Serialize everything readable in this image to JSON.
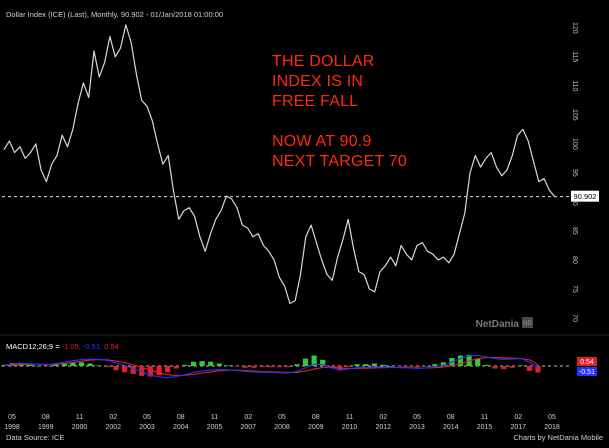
{
  "header": {
    "title": "Dollar Index (ICE) (Last), Monthly, 90.902 - 01/Jan/2018 01:00:00"
  },
  "annotation": {
    "lines": [
      "THE DOLLAR",
      "INDEX IS  IN",
      "FREE FALL",
      "",
      "NOW AT 90.9",
      "NEXT TARGET 70"
    ]
  },
  "watermark": "NetDania",
  "footer": {
    "source": "Data Source: ICE",
    "credit": "Charts by NetDania Mobile"
  },
  "colors": {
    "background": "#000000",
    "price_line": "#d9d9d9",
    "annotation": "#ff2a10",
    "macd_line": "#2233ff",
    "signal_line": "#e2202a",
    "hist_pos": "#33cc33",
    "hist_neg": "#e2202a"
  },
  "chart_data": [
    {
      "type": "line",
      "title": "Dollar Index (ICE) (Last), Monthly, 90.902 - 01/Jan/2018 01:00:00",
      "x_tick_labels": [
        {
          "month": "05",
          "year": "1998"
        },
        {
          "month": "08",
          "year": "1999"
        },
        {
          "month": "11",
          "year": "2000"
        },
        {
          "month": "02",
          "year": "2002"
        },
        {
          "month": "05",
          "year": "2003"
        },
        {
          "month": "08",
          "year": "2004"
        },
        {
          "month": "11",
          "year": "2005"
        },
        {
          "month": "02",
          "year": "2007"
        },
        {
          "month": "05",
          "year": "2008"
        },
        {
          "month": "08",
          "year": "2009"
        },
        {
          "month": "11",
          "year": "2010"
        },
        {
          "month": "02",
          "year": "2012"
        },
        {
          "month": "05",
          "year": "2013"
        },
        {
          "month": "08",
          "year": "2014"
        },
        {
          "month": "11",
          "year": "2015"
        },
        {
          "month": "02",
          "year": "2017"
        },
        {
          "month": "05",
          "year": "2018"
        }
      ],
      "y_ticks": [
        "70",
        "75",
        "80",
        "85",
        "90",
        "95",
        "100",
        "105",
        "110",
        "115",
        "120"
      ],
      "ylim": [
        70,
        121
      ],
      "xlim": [
        1997.4,
        2018.4
      ],
      "last_value": "90.902",
      "grid": false,
      "series": [
        {
          "points": [
            [
              1997.4,
              99.0
            ],
            [
              1997.6,
              100.5
            ],
            [
              1997.8,
              98.5
            ],
            [
              1998.0,
              99.5
            ],
            [
              1998.2,
              97.5
            ],
            [
              1998.4,
              98.5
            ],
            [
              1998.6,
              100.0
            ],
            [
              1998.8,
              95.5
            ],
            [
              1999.0,
              93.5
            ],
            [
              1999.2,
              96.5
            ],
            [
              1999.4,
              98.0
            ],
            [
              1999.6,
              101.5
            ],
            [
              1999.8,
              99.5
            ],
            [
              2000.0,
              102.5
            ],
            [
              2000.2,
              107.0
            ],
            [
              2000.4,
              110.5
            ],
            [
              2000.6,
              108.0
            ],
            [
              2000.8,
              116.0
            ],
            [
              2001.0,
              111.5
            ],
            [
              2001.2,
              114.0
            ],
            [
              2001.4,
              118.5
            ],
            [
              2001.6,
              115.0
            ],
            [
              2001.8,
              116.5
            ],
            [
              2002.0,
              120.5
            ],
            [
              2002.2,
              117.5
            ],
            [
              2002.4,
              112.0
            ],
            [
              2002.6,
              107.5
            ],
            [
              2002.8,
              106.5
            ],
            [
              2003.0,
              104.0
            ],
            [
              2003.2,
              100.0
            ],
            [
              2003.4,
              96.5
            ],
            [
              2003.6,
              98.0
            ],
            [
              2003.8,
              92.0
            ],
            [
              2004.0,
              87.0
            ],
            [
              2004.2,
              88.5
            ],
            [
              2004.4,
              89.0
            ],
            [
              2004.6,
              87.5
            ],
            [
              2004.8,
              84.0
            ],
            [
              2005.0,
              81.5
            ],
            [
              2005.2,
              84.5
            ],
            [
              2005.4,
              87.0
            ],
            [
              2005.6,
              88.5
            ],
            [
              2005.8,
              91.0
            ],
            [
              2006.0,
              90.5
            ],
            [
              2006.2,
              89.0
            ],
            [
              2006.4,
              86.0
            ],
            [
              2006.6,
              85.5
            ],
            [
              2006.8,
              84.0
            ],
            [
              2007.0,
              84.5
            ],
            [
              2007.2,
              82.5
            ],
            [
              2007.4,
              81.5
            ],
            [
              2007.6,
              80.0
            ],
            [
              2007.8,
              77.0
            ],
            [
              2008.0,
              75.5
            ],
            [
              2008.2,
              72.5
            ],
            [
              2008.4,
              73.0
            ],
            [
              2008.6,
              77.5
            ],
            [
              2008.8,
              84.0
            ],
            [
              2009.0,
              86.0
            ],
            [
              2009.2,
              83.0
            ],
            [
              2009.4,
              80.0
            ],
            [
              2009.6,
              77.5
            ],
            [
              2009.8,
              76.5
            ],
            [
              2010.0,
              80.5
            ],
            [
              2010.2,
              83.5
            ],
            [
              2010.4,
              87.0
            ],
            [
              2010.6,
              82.0
            ],
            [
              2010.8,
              78.0
            ],
            [
              2011.0,
              77.5
            ],
            [
              2011.2,
              75.0
            ],
            [
              2011.4,
              74.5
            ],
            [
              2011.6,
              78.0
            ],
            [
              2011.8,
              79.0
            ],
            [
              2012.0,
              80.5
            ],
            [
              2012.2,
              79.0
            ],
            [
              2012.4,
              82.5
            ],
            [
              2012.6,
              81.0
            ],
            [
              2012.8,
              80.0
            ],
            [
              2013.0,
              82.5
            ],
            [
              2013.2,
              83.0
            ],
            [
              2013.4,
              81.5
            ],
            [
              2013.6,
              81.0
            ],
            [
              2013.8,
              80.0
            ],
            [
              2014.0,
              80.5
            ],
            [
              2014.2,
              79.5
            ],
            [
              2014.4,
              81.0
            ],
            [
              2014.6,
              84.5
            ],
            [
              2014.8,
              88.0
            ],
            [
              2015.0,
              95.0
            ],
            [
              2015.2,
              98.0
            ],
            [
              2015.4,
              96.0
            ],
            [
              2015.6,
              97.5
            ],
            [
              2015.8,
              98.5
            ],
            [
              2016.0,
              96.0
            ],
            [
              2016.2,
              94.5
            ],
            [
              2016.4,
              95.5
            ],
            [
              2016.6,
              98.0
            ],
            [
              2016.8,
              101.5
            ],
            [
              2017.0,
              102.5
            ],
            [
              2017.2,
              100.5
            ],
            [
              2017.4,
              97.0
            ],
            [
              2017.6,
              93.5
            ],
            [
              2017.8,
              94.0
            ],
            [
              2018.0,
              92.0
            ],
            [
              2018.2,
              90.9
            ]
          ]
        }
      ]
    },
    {
      "type": "line",
      "title": "MACD12;26;9 = -1.05; -0.51; 0.54",
      "legend_parts": [
        {
          "text": "MACD12;26;9 =",
          "color": "#ffffff"
        },
        {
          "text": "-1.05;",
          "color": "#e2202a"
        },
        {
          "text": "-0.51;",
          "color": "#2233ff"
        },
        {
          "text": "0.54",
          "color": "#e2202a"
        }
      ],
      "last_values": {
        "signal": "0.54",
        "macd": "-0.51"
      },
      "ylim": [
        -5,
        5
      ],
      "series": [
        {
          "name": "MACD",
          "values": [
            0.3,
            0.8,
            1.0,
            0.8,
            0.6,
            0.4,
            0.9,
            1.4,
            1.9,
            2.3,
            2.5,
            2.4,
            2.0,
            1.1,
            0.2,
            -0.9,
            -2.1,
            -3.2,
            -3.9,
            -4.1,
            -3.8,
            -3.1,
            -2.3,
            -1.7,
            -1.4,
            -1.3,
            -1.4,
            -1.6,
            -1.9,
            -2.1,
            -2.2,
            -2.3,
            -2.4,
            -2.5,
            -2.0,
            -0.6,
            0.6,
            0.5,
            -0.6,
            -1.4,
            -1.1,
            -0.6,
            -0.5,
            -0.3,
            -0.4,
            -0.5,
            -0.6,
            -0.7,
            -0.9,
            -0.7,
            -0.3,
            0.2,
            1.4,
            2.6,
            3.6,
            3.8,
            3.2,
            2.6,
            2.4,
            2.5,
            2.7,
            1.4,
            -0.51
          ]
        },
        {
          "name": "Signal",
          "values": [
            0.1,
            0.3,
            0.5,
            0.6,
            0.6,
            0.5,
            0.6,
            0.9,
            1.3,
            1.7,
            2.1,
            2.3,
            2.2,
            1.8,
            1.2,
            0.4,
            -0.5,
            -1.5,
            -2.4,
            -3.1,
            -3.4,
            -3.3,
            -3.0,
            -2.5,
            -2.1,
            -1.7,
            -1.5,
            -1.5,
            -1.6,
            -1.8,
            -2.0,
            -2.1,
            -2.2,
            -2.3,
            -2.3,
            -1.8,
            -1.1,
            -0.5,
            -0.4,
            -0.7,
            -0.9,
            -0.9,
            -0.8,
            -0.7,
            -0.6,
            -0.5,
            -0.5,
            -0.6,
            -0.7,
            -0.7,
            -0.6,
            -0.4,
            0.1,
            0.9,
            1.8,
            2.6,
            3.0,
            3.0,
            2.9,
            2.8,
            2.6,
            2.2,
            0.54
          ]
        },
        {
          "name": "Histogram",
          "values": [
            0.2,
            0.5,
            0.5,
            0.2,
            0.0,
            -0.1,
            0.3,
            0.5,
            0.6,
            0.6,
            0.4,
            0.1,
            -0.2,
            -0.7,
            -1.0,
            -1.3,
            -1.6,
            -1.7,
            -1.5,
            -1.0,
            -0.4,
            0.2,
            0.7,
            0.8,
            0.7,
            0.4,
            0.1,
            -0.1,
            -0.3,
            -0.3,
            -0.2,
            -0.2,
            -0.2,
            -0.2,
            0.3,
            1.2,
            1.7,
            1.0,
            -0.2,
            -0.7,
            -0.2,
            0.3,
            0.3,
            0.4,
            0.2,
            0.0,
            -0.1,
            -0.1,
            -0.2,
            0.0,
            0.3,
            0.6,
            1.3,
            1.7,
            1.8,
            1.2,
            0.2,
            -0.4,
            -0.5,
            -0.3,
            0.1,
            -0.8,
            -1.05
          ]
        }
      ]
    }
  ]
}
